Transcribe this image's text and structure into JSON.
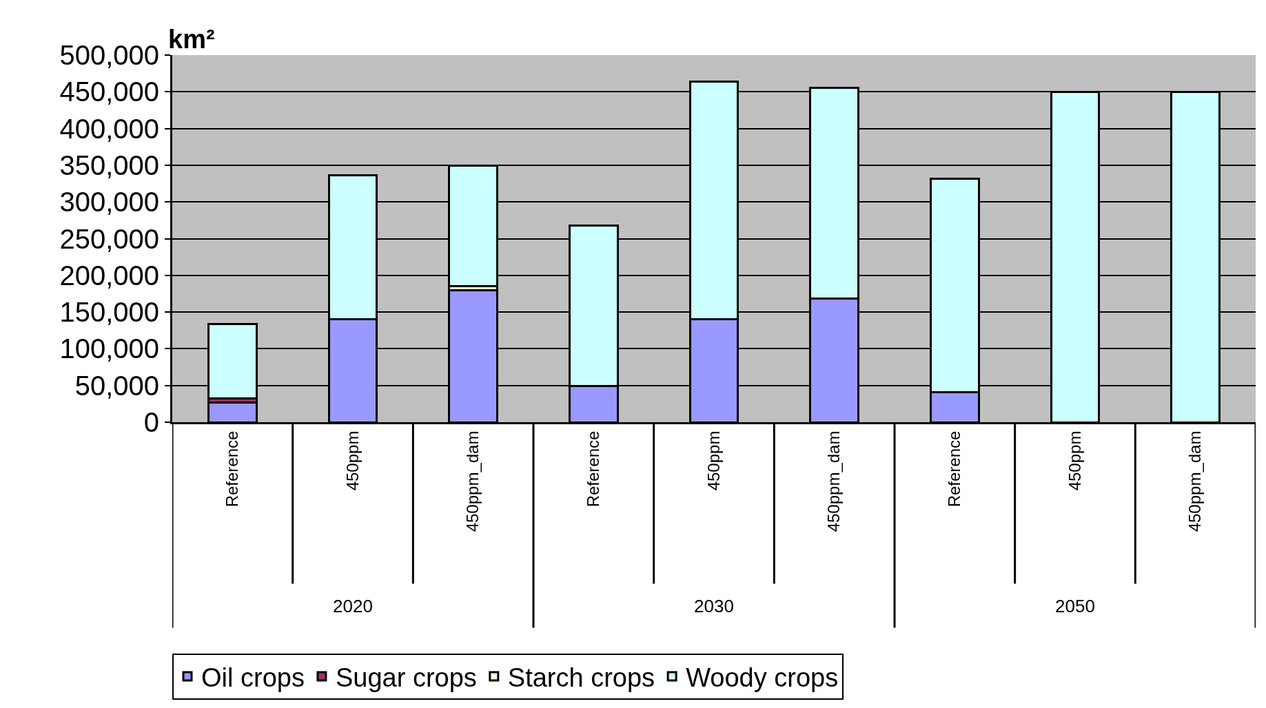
{
  "chart_data": {
    "type": "bar",
    "stacked": true,
    "ylabel": "km²",
    "categories": [
      "Reference",
      "450ppm",
      "450ppm_dam",
      "Reference",
      "450ppm",
      "450ppm_dam",
      "Reference",
      "450ppm",
      "450ppm_dam"
    ],
    "series": [
      {
        "name": "Oil crops",
        "color": "#9999ff",
        "values": [
          27000,
          140000,
          180000,
          49000,
          140000,
          168000,
          41000,
          null,
          null
        ]
      },
      {
        "name": "Sugar crops",
        "color": "#993366",
        "values": [
          5000,
          null,
          null,
          null,
          null,
          null,
          null,
          null,
          null
        ]
      },
      {
        "name": "Starch crops",
        "color": "#ffffcc",
        "values": [
          null,
          null,
          5000,
          null,
          null,
          null,
          null,
          null,
          null
        ]
      },
      {
        "name": "Woody crops",
        "color": "#ccffff",
        "values": [
          102000,
          196000,
          164000,
          219000,
          324000,
          287000,
          291000,
          450000,
          450000
        ]
      }
    ],
    "annotations": [
      "2020",
      "2030",
      "2050"
    ],
    "ylim": [
      0,
      500000
    ],
    "yticks": [
      {
        "value": 0,
        "label": "0"
      },
      {
        "value": 50000,
        "label": "50,000"
      },
      {
        "value": 100000,
        "label": "100,000"
      },
      {
        "value": 150000,
        "label": "150,000"
      },
      {
        "value": 200000,
        "label": "200,000"
      },
      {
        "value": 250000,
        "label": "250,000"
      },
      {
        "value": 300000,
        "label": "300,000"
      },
      {
        "value": 350000,
        "label": "350,000"
      },
      {
        "value": 400000,
        "label": "400,000"
      },
      {
        "value": 450000,
        "label": "450,000"
      },
      {
        "value": 500000,
        "label": "500,000"
      }
    ],
    "grid": "y",
    "legend": "bottom"
  }
}
